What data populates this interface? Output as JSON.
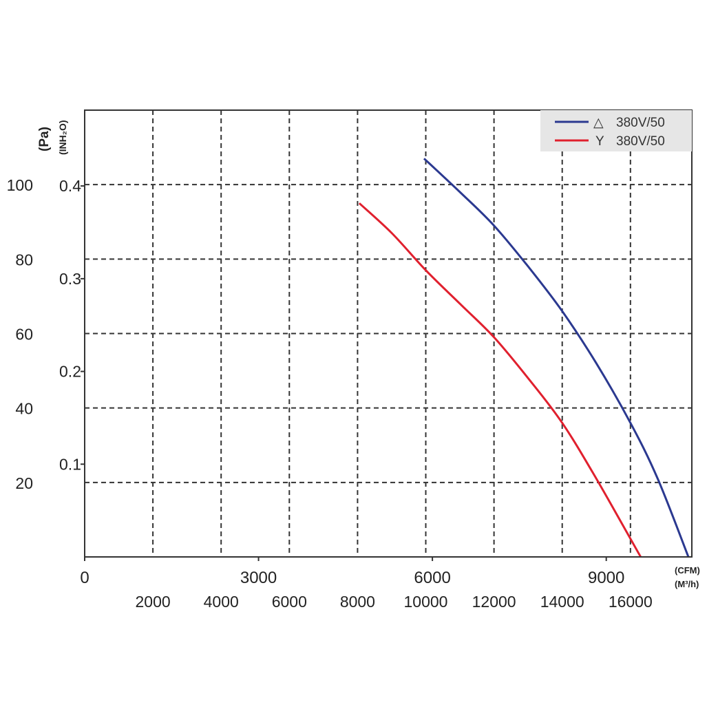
{
  "chart_data": {
    "type": "line",
    "title": "",
    "y_axis_left_outer": {
      "label": "(Pa)",
      "ticks": [
        "20",
        "40",
        "60",
        "80",
        "100"
      ],
      "tick_values": [
        20,
        40,
        60,
        80,
        100
      ]
    },
    "y_axis_left_inner": {
      "label": "(INH₂O)",
      "ticks": [
        "0.1",
        "0.2",
        "0.3",
        "0.4"
      ],
      "tick_values": [
        0.1,
        0.2,
        0.3,
        0.4
      ]
    },
    "x_axis_top": {
      "label": "(CFM)",
      "ticks": [
        "0",
        "3000",
        "6000",
        "9000"
      ],
      "tick_values": [
        0,
        3000,
        6000,
        9000
      ]
    },
    "x_axis_bottom": {
      "label": "(M³/h)",
      "ticks": [
        "2000",
        "4000",
        "6000",
        "8000",
        "10000",
        "12000",
        "14000",
        "16000"
      ],
      "tick_values": [
        2000,
        4000,
        6000,
        8000,
        10000,
        12000,
        14000,
        16000
      ]
    },
    "xlim_m3h": [
      0,
      17800
    ],
    "ylim_pa": [
      0,
      120
    ],
    "grid": true,
    "legend_position": "top-right",
    "series": [
      {
        "name": "380V/50",
        "symbol": "△",
        "color": "#2b3990",
        "x_m3h": [
          9950,
          11000,
          12000,
          13000,
          14000,
          15000,
          16000,
          16800,
          17700
        ],
        "y_pa": [
          107,
          98,
          89,
          78,
          66,
          52,
          36,
          21,
          0
        ]
      },
      {
        "name": "380V/50",
        "symbol": "Y",
        "color": "#e0202e",
        "x_m3h": [
          8050,
          9000,
          10000,
          11000,
          12000,
          13000,
          14000,
          15000,
          16300
        ],
        "y_pa": [
          95,
          87,
          77,
          68,
          59,
          48,
          36,
          21,
          0
        ]
      }
    ]
  }
}
